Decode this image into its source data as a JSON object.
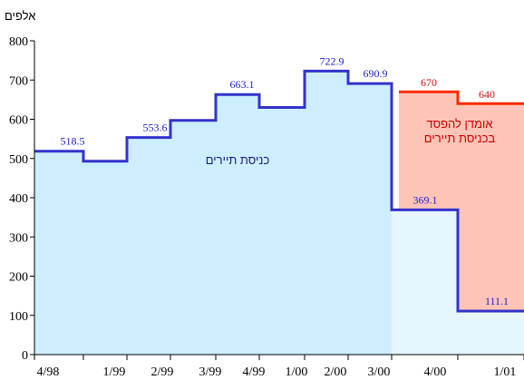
{
  "chart_data": {
    "type": "line",
    "title": "",
    "ylabel": "אלפים",
    "xlabel": "",
    "ylim": [
      0,
      800
    ],
    "y_ticks": [
      "0",
      "100",
      "200",
      "300",
      "400",
      "500",
      "600",
      "700",
      "800"
    ],
    "x_tick_labels": [
      "4/98",
      "1/99",
      "2/99",
      "3/99",
      "4/99",
      "1/00",
      "2/00",
      "3/00",
      "4/00",
      "1/01"
    ],
    "series": [
      {
        "values": [
          518.5,
          493,
          553.6,
          597,
          663.1,
          630,
          722.9,
          690.9,
          369.1,
          111.1
        ],
        "data_labels": [
          "518.5",
          "",
          "553.6",
          "",
          "663.1",
          "",
          "722.9",
          "690.9",
          "369.1",
          "111.1"
        ],
        "color": "#3333cc"
      },
      {
        "values": [
          670,
          640
        ],
        "data_labels": [
          "670",
          "640"
        ],
        "color": "#ff2a00"
      }
    ],
    "annotations": {
      "actual": "כניסת תיירים",
      "loss_line1": "אומדן להפסד",
      "loss_line2": "בכניסת תיירים"
    },
    "colors": {
      "actual_fill": "#cceeff",
      "actual_fill_light": "#e6f6ff",
      "loss_fill": "#ffc4b8"
    },
    "grid": false
  }
}
